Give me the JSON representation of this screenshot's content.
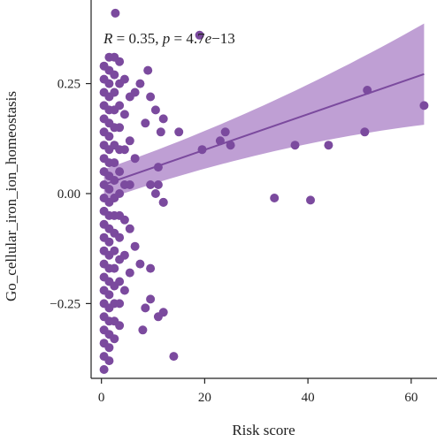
{
  "chart_data": {
    "type": "scatter",
    "title": "",
    "xlabel": "Risk score",
    "ylabel": "Go_cellular_iron_ion_homeostasis",
    "annotation": {
      "r_var": "R",
      "r_val": " = 0.35, ",
      "p_var": "p",
      "p_val": " = 4.7",
      "p_exp": "e",
      "p_tail": "−13"
    },
    "xlim": [
      -2,
      65
    ],
    "ylim": [
      -0.42,
      0.44
    ],
    "x_ticks": [
      0,
      20,
      40,
      60
    ],
    "x_tick_labels": [
      "0",
      "20",
      "40",
      "60"
    ],
    "y_ticks": [
      0.25,
      0.0,
      -0.25
    ],
    "y_tick_labels": [
      "0.25",
      "0.00",
      "−0.25"
    ],
    "grid": false,
    "colors": {
      "point": "#7B4A9E",
      "line": "#7B4A9E",
      "band": "#B48ECC"
    },
    "regression": {
      "intercept": 0.0184,
      "slope": 0.00405,
      "x_range": [
        0.5,
        62.5
      ],
      "band_halfwidth_at_x0": 0.035,
      "band_halfwidth_at_xmax": 0.115
    },
    "points": [
      [
        0.5,
        -0.4
      ],
      [
        0.5,
        -0.37
      ],
      [
        0.5,
        -0.34
      ],
      [
        0.5,
        -0.31
      ],
      [
        0.5,
        -0.28
      ],
      [
        0.5,
        -0.25
      ],
      [
        0.5,
        -0.22
      ],
      [
        0.5,
        -0.19
      ],
      [
        0.5,
        -0.16
      ],
      [
        0.5,
        -0.13
      ],
      [
        0.5,
        -0.1
      ],
      [
        0.5,
        -0.07
      ],
      [
        0.5,
        -0.04
      ],
      [
        0.5,
        -0.01
      ],
      [
        0.5,
        0.02
      ],
      [
        0.5,
        0.05
      ],
      [
        0.5,
        0.08
      ],
      [
        0.5,
        0.11
      ],
      [
        0.5,
        0.14
      ],
      [
        0.5,
        0.17
      ],
      [
        0.5,
        0.2
      ],
      [
        0.5,
        0.23
      ],
      [
        0.5,
        0.26
      ],
      [
        0.5,
        0.29
      ],
      [
        1.5,
        -0.38
      ],
      [
        1.5,
        -0.35
      ],
      [
        1.5,
        -0.32
      ],
      [
        1.5,
        -0.29
      ],
      [
        1.5,
        -0.26
      ],
      [
        1.5,
        -0.23
      ],
      [
        1.5,
        -0.2
      ],
      [
        1.5,
        -0.17
      ],
      [
        1.5,
        -0.14
      ],
      [
        1.5,
        -0.11
      ],
      [
        1.5,
        -0.08
      ],
      [
        1.5,
        -0.05
      ],
      [
        1.5,
        -0.02
      ],
      [
        1.5,
        0.01
      ],
      [
        1.5,
        0.04
      ],
      [
        1.5,
        0.07
      ],
      [
        1.5,
        0.1
      ],
      [
        1.5,
        0.13
      ],
      [
        1.5,
        0.16
      ],
      [
        1.5,
        0.19
      ],
      [
        1.5,
        0.22
      ],
      [
        1.5,
        0.25
      ],
      [
        1.5,
        0.28
      ],
      [
        1.5,
        0.31
      ],
      [
        2.5,
        -0.33
      ],
      [
        2.5,
        -0.29
      ],
      [
        2.5,
        -0.25
      ],
      [
        2.5,
        -0.21
      ],
      [
        2.5,
        -0.17
      ],
      [
        2.5,
        -0.13
      ],
      [
        2.5,
        -0.09
      ],
      [
        2.5,
        -0.05
      ],
      [
        2.5,
        -0.01
      ],
      [
        2.5,
        0.03
      ],
      [
        2.5,
        0.07
      ],
      [
        2.5,
        0.11
      ],
      [
        2.5,
        0.15
      ],
      [
        2.5,
        0.19
      ],
      [
        2.5,
        0.23
      ],
      [
        2.5,
        0.27
      ],
      [
        2.5,
        0.31
      ],
      [
        3.5,
        -0.3
      ],
      [
        3.5,
        -0.25
      ],
      [
        3.5,
        -0.2
      ],
      [
        3.5,
        -0.15
      ],
      [
        3.5,
        -0.1
      ],
      [
        3.5,
        -0.05
      ],
      [
        3.5,
        0.0
      ],
      [
        3.5,
        0.05
      ],
      [
        3.5,
        0.1
      ],
      [
        3.5,
        0.15
      ],
      [
        3.5,
        0.2
      ],
      [
        3.5,
        0.25
      ],
      [
        3.5,
        0.3
      ],
      [
        4.5,
        -0.22
      ],
      [
        4.5,
        -0.14
      ],
      [
        4.5,
        -0.06
      ],
      [
        4.5,
        0.02
      ],
      [
        4.5,
        0.1
      ],
      [
        4.5,
        0.18
      ],
      [
        4.5,
        0.26
      ],
      [
        5.5,
        -0.18
      ],
      [
        5.5,
        -0.08
      ],
      [
        5.5,
        0.02
      ],
      [
        5.5,
        0.12
      ],
      [
        5.5,
        0.22
      ],
      [
        2.7,
        0.41
      ],
      [
        6.5,
        -0.12
      ],
      [
        6.5,
        0.08
      ],
      [
        6.5,
        0.23
      ],
      [
        7.5,
        -0.16
      ],
      [
        7.5,
        0.25
      ],
      [
        8.5,
        0.16
      ],
      [
        8.5,
        -0.26
      ],
      [
        9.5,
        -0.24
      ],
      [
        9.5,
        -0.17
      ],
      [
        9.0,
        0.28
      ],
      [
        9.5,
        0.02
      ],
      [
        10.5,
        0.0
      ],
      [
        11.0,
        0.06
      ],
      [
        11.0,
        0.02
      ],
      [
        12.0,
        -0.02
      ],
      [
        12.0,
        -0.02
      ],
      [
        12.0,
        0.17
      ],
      [
        11.5,
        0.14
      ],
      [
        10.5,
        0.19
      ],
      [
        9.5,
        0.22
      ],
      [
        12.0,
        -0.27
      ],
      [
        11.0,
        -0.28
      ],
      [
        8.0,
        -0.31
      ],
      [
        14.0,
        -0.37
      ],
      [
        19.0,
        0.36
      ],
      [
        19.5,
        0.1
      ],
      [
        15.0,
        0.14
      ],
      [
        23.0,
        0.12
      ],
      [
        24.0,
        0.14
      ],
      [
        25.0,
        0.11
      ],
      [
        33.5,
        -0.01
      ],
      [
        37.5,
        0.11
      ],
      [
        40.5,
        -0.015
      ],
      [
        44.0,
        0.11
      ],
      [
        51.0,
        0.14
      ],
      [
        51.5,
        0.235
      ],
      [
        62.5,
        0.2
      ]
    ]
  }
}
